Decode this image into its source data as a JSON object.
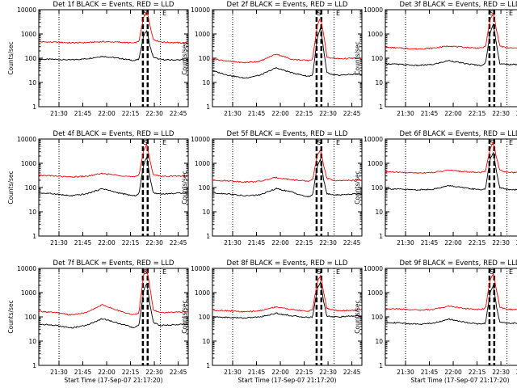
{
  "x_tick_labels": [
    "21:30",
    "21:45",
    "22:00",
    "22:15",
    "22:30",
    "22:45"
  ],
  "x_axis_label": "Start Time (17-Sep-07 21:17:20)",
  "y_axis_label": "Counts/sec",
  "y_tick_labels": [
    "1",
    "10",
    "100",
    "1000",
    "10000"
  ],
  "colors": {
    "events": "#000000",
    "lld": "#ff0000",
    "axes": "#000000",
    "background": "#ffffff"
  },
  "chart_data": [
    {
      "type": "line",
      "title": "Det 1f BLACK = Events, RED = LLD",
      "xlabel": "",
      "ylabel": "Counts/sec",
      "x_unit": "minutes after 21:17:20",
      "xlim": [
        0,
        94
      ],
      "ylim": [
        1,
        10000
      ],
      "yscale": "log",
      "x_tick_values": [
        12.7,
        27.7,
        42.7,
        57.7,
        72.7,
        87.7
      ],
      "x_tick_labels": [
        "21:30",
        "21:45",
        "22:00",
        "22:15",
        "22:30",
        "22:45"
      ],
      "dotted_vlines": [
        12.7,
        76.5
      ],
      "dashed_vlines": [
        65.5,
        68.5
      ],
      "markers": [
        "S",
        "E"
      ],
      "x": [
        0,
        10,
        20,
        30,
        40,
        50,
        60,
        63,
        66,
        68,
        70,
        72,
        76,
        80,
        90,
        94
      ],
      "series": [
        {
          "name": "BLACK = Events",
          "values": [
            90,
            90,
            85,
            95,
            120,
            100,
            80,
            90,
            900,
            1400,
            300,
            110,
            90,
            85,
            85,
            85
          ]
        },
        {
          "name": "RED = LLD",
          "values": [
            470,
            460,
            430,
            440,
            480,
            460,
            420,
            500,
            5000,
            9000,
            2200,
            600,
            480,
            450,
            430,
            430
          ]
        }
      ]
    },
    {
      "type": "line",
      "title": "Det 2f BLACK = Events, RED = LLD",
      "xlabel": "",
      "ylabel": "Counts/sec",
      "x_unit": "minutes after 21:17:20",
      "xlim": [
        0,
        94
      ],
      "ylim": [
        1,
        10000
      ],
      "yscale": "log",
      "x_tick_values": [
        12.7,
        27.7,
        42.7,
        57.7,
        72.7,
        87.7
      ],
      "x_tick_labels": [
        "21:30",
        "21:45",
        "22:00",
        "22:15",
        "22:30",
        "22:45"
      ],
      "dotted_vlines": [
        12.7,
        76.5
      ],
      "dashed_vlines": [
        65.5,
        68.5
      ],
      "markers": [
        "S",
        "E"
      ],
      "x": [
        0,
        10,
        20,
        30,
        40,
        50,
        60,
        63,
        66,
        68,
        70,
        72,
        76,
        80,
        90,
        94
      ],
      "series": [
        {
          "name": "BLACK = Events",
          "values": [
            30,
            20,
            15,
            20,
            40,
            25,
            18,
            20,
            700,
            1800,
            200,
            25,
            20,
            20,
            22,
            22
          ]
        },
        {
          "name": "RED = LLD",
          "values": [
            95,
            75,
            65,
            75,
            150,
            90,
            80,
            90,
            2500,
            4500,
            900,
            110,
            100,
            95,
            100,
            100
          ]
        }
      ]
    },
    {
      "type": "line",
      "title": "Det 3f BLACK = Events, RED = LLD",
      "xlabel": "",
      "ylabel": "Counts/sec",
      "x_unit": "minutes after 21:17:20",
      "xlim": [
        0,
        94
      ],
      "ylim": [
        1,
        10000
      ],
      "yscale": "log",
      "x_tick_values": [
        12.7,
        27.7,
        42.7,
        57.7,
        72.7,
        87.7
      ],
      "x_tick_labels": [
        "21:30",
        "21:45",
        "22:00",
        "22:15",
        "22:30",
        "22:45"
      ],
      "dotted_vlines": [
        12.7,
        76.5
      ],
      "dashed_vlines": [
        65.5,
        68.5
      ],
      "markers": [
        "S",
        "E"
      ],
      "x": [
        0,
        10,
        20,
        30,
        40,
        50,
        60,
        63,
        66,
        68,
        70,
        72,
        76,
        80,
        90,
        94
      ],
      "series": [
        {
          "name": "BLACK = Events",
          "values": [
            60,
            55,
            50,
            55,
            80,
            60,
            50,
            60,
            1200,
            2500,
            350,
            60,
            55,
            55,
            55,
            55
          ]
        },
        {
          "name": "RED = LLD",
          "values": [
            280,
            260,
            240,
            260,
            320,
            280,
            260,
            300,
            4000,
            7000,
            1400,
            320,
            270,
            260,
            260,
            260
          ]
        }
      ]
    },
    {
      "type": "line",
      "title": "Det 4f BLACK = Events, RED = LLD",
      "xlabel": "",
      "ylabel": "Counts/sec",
      "x_unit": "minutes after 21:17:20",
      "xlim": [
        0,
        94
      ],
      "ylim": [
        1,
        10000
      ],
      "yscale": "log",
      "x_tick_values": [
        12.7,
        27.7,
        42.7,
        57.7,
        72.7,
        87.7
      ],
      "x_tick_labels": [
        "21:30",
        "21:45",
        "22:00",
        "22:15",
        "22:30",
        "22:45"
      ],
      "dotted_vlines": [
        12.7,
        76.5
      ],
      "dashed_vlines": [
        65.5,
        68.5
      ],
      "markers": [
        "S",
        "E"
      ],
      "x": [
        0,
        10,
        20,
        30,
        40,
        50,
        60,
        63,
        66,
        68,
        70,
        72,
        76,
        80,
        90,
        94
      ],
      "series": [
        {
          "name": "BLACK = Events",
          "values": [
            60,
            55,
            45,
            55,
            90,
            60,
            45,
            55,
            900,
            1800,
            250,
            60,
            55,
            55,
            60,
            60
          ]
        },
        {
          "name": "RED = LLD",
          "values": [
            320,
            300,
            270,
            290,
            380,
            320,
            270,
            330,
            3500,
            6000,
            1200,
            350,
            300,
            290,
            300,
            300
          ]
        }
      ]
    },
    {
      "type": "line",
      "title": "Det 5f BLACK = Events, RED = LLD",
      "xlabel": "",
      "ylabel": "Counts/sec",
      "x_unit": "minutes after 21:17:20",
      "xlim": [
        0,
        94
      ],
      "ylim": [
        1,
        10000
      ],
      "yscale": "log",
      "x_tick_values": [
        12.7,
        27.7,
        42.7,
        57.7,
        72.7,
        87.7
      ],
      "x_tick_labels": [
        "21:30",
        "21:45",
        "22:00",
        "22:15",
        "22:30",
        "22:45"
      ],
      "dotted_vlines": [
        12.7,
        76.5
      ],
      "dashed_vlines": [
        65.5,
        68.5
      ],
      "markers": [
        "S",
        "E"
      ],
      "x": [
        0,
        10,
        20,
        30,
        40,
        50,
        60,
        63,
        66,
        68,
        70,
        72,
        76,
        80,
        90,
        94
      ],
      "series": [
        {
          "name": "BLACK = Events",
          "values": [
            60,
            55,
            45,
            50,
            90,
            65,
            40,
            50,
            800,
            1500,
            200,
            55,
            50,
            50,
            55,
            55
          ]
        },
        {
          "name": "RED = LLD",
          "values": [
            200,
            190,
            170,
            180,
            260,
            210,
            180,
            210,
            2200,
            3500,
            800,
            240,
            200,
            190,
            200,
            200
          ]
        }
      ]
    },
    {
      "type": "line",
      "title": "Det 6f BLACK = Events, RED = LLD",
      "xlabel": "",
      "ylabel": "Counts/sec",
      "x_unit": "minutes after 21:17:20",
      "xlim": [
        0,
        94
      ],
      "ylim": [
        1,
        10000
      ],
      "yscale": "log",
      "x_tick_values": [
        12.7,
        27.7,
        42.7,
        57.7,
        72.7,
        87.7
      ],
      "x_tick_labels": [
        "21:30",
        "21:45",
        "22:00",
        "22:15",
        "22:30",
        "22:45"
      ],
      "dotted_vlines": [
        12.7,
        76.5
      ],
      "dashed_vlines": [
        65.5,
        68.5
      ],
      "markers": [
        "S",
        "E"
      ],
      "x": [
        0,
        10,
        20,
        30,
        40,
        50,
        60,
        63,
        66,
        68,
        70,
        72,
        76,
        80,
        90,
        94
      ],
      "series": [
        {
          "name": "BLACK = Events",
          "values": [
            90,
            85,
            80,
            85,
            120,
            95,
            80,
            90,
            1500,
            3000,
            400,
            100,
            85,
            80,
            85,
            85
          ]
        },
        {
          "name": "RED = LLD",
          "values": [
            450,
            420,
            400,
            420,
            520,
            450,
            420,
            480,
            4000,
            7500,
            1600,
            520,
            440,
            420,
            430,
            430
          ]
        }
      ]
    },
    {
      "type": "line",
      "title": "Det 7f BLACK = Events, RED = LLD",
      "xlabel": "Start Time (17-Sep-07 21:17:20)",
      "ylabel": "Counts/sec",
      "x_unit": "minutes after 21:17:20",
      "xlim": [
        0,
        94
      ],
      "ylim": [
        1,
        10000
      ],
      "yscale": "log",
      "x_tick_values": [
        12.7,
        27.7,
        42.7,
        57.7,
        72.7,
        87.7
      ],
      "x_tick_labels": [
        "21:30",
        "21:45",
        "22:00",
        "22:15",
        "22:30",
        "22:45"
      ],
      "dotted_vlines": [
        12.7,
        76.5
      ],
      "dashed_vlines": [
        65.5,
        68.5
      ],
      "markers": [
        "S",
        "E"
      ],
      "x": [
        0,
        10,
        20,
        30,
        40,
        50,
        60,
        63,
        66,
        68,
        70,
        72,
        76,
        80,
        90,
        94
      ],
      "series": [
        {
          "name": "BLACK = Events",
          "values": [
            50,
            45,
            35,
            45,
            85,
            55,
            35,
            45,
            1200,
            2500,
            300,
            60,
            45,
            45,
            50,
            50
          ]
        },
        {
          "name": "RED = LLD",
          "values": [
            170,
            150,
            120,
            150,
            320,
            180,
            120,
            150,
            6000,
            9000,
            1500,
            200,
            150,
            150,
            160,
            160
          ]
        }
      ]
    },
    {
      "type": "line",
      "title": "Det 8f BLACK = Events, RED = LLD",
      "xlabel": "Start Time (17-Sep-07 21:17:20)",
      "ylabel": "Counts/sec",
      "x_unit": "minutes after 21:17:20",
      "xlim": [
        0,
        94
      ],
      "ylim": [
        1,
        10000
      ],
      "yscale": "log",
      "x_tick_values": [
        12.7,
        27.7,
        42.7,
        57.7,
        72.7,
        87.7
      ],
      "x_tick_labels": [
        "21:30",
        "21:45",
        "22:00",
        "22:15",
        "22:30",
        "22:45"
      ],
      "dotted_vlines": [
        12.7,
        76.5
      ],
      "dashed_vlines": [
        65.5,
        68.5
      ],
      "markers": [
        "S",
        "E"
      ],
      "x": [
        0,
        10,
        20,
        30,
        40,
        50,
        60,
        63,
        66,
        68,
        70,
        72,
        76,
        80,
        90,
        94
      ],
      "series": [
        {
          "name": "BLACK = Events",
          "values": [
            100,
            95,
            90,
            100,
            140,
            110,
            95,
            100,
            1500,
            2800,
            400,
            110,
            100,
            100,
            110,
            110
          ]
        },
        {
          "name": "RED = LLD",
          "values": [
            190,
            180,
            160,
            180,
            260,
            200,
            170,
            200,
            3000,
            5000,
            1000,
            220,
            190,
            180,
            190,
            190
          ]
        }
      ]
    },
    {
      "type": "line",
      "title": "Det 9f BLACK = Events, RED = LLD",
      "xlabel": "Start Time (17-Sep-07 21:17:20)",
      "ylabel": "Counts/sec",
      "x_unit": "minutes after 21:17:20",
      "xlim": [
        0,
        94
      ],
      "ylim": [
        1,
        10000
      ],
      "yscale": "log",
      "x_tick_values": [
        12.7,
        27.7,
        42.7,
        57.7,
        72.7,
        87.7
      ],
      "x_tick_labels": [
        "21:30",
        "21:45",
        "22:00",
        "22:15",
        "22:30",
        "22:45"
      ],
      "dotted_vlines": [
        12.7,
        76.5
      ],
      "dashed_vlines": [
        65.5,
        68.5
      ],
      "markers": [
        "S",
        "E"
      ],
      "x": [
        0,
        10,
        20,
        30,
        40,
        50,
        60,
        63,
        66,
        68,
        70,
        72,
        76,
        80,
        90,
        94
      ],
      "series": [
        {
          "name": "BLACK = Events",
          "values": [
            60,
            55,
            50,
            55,
            80,
            60,
            50,
            55,
            1000,
            2000,
            250,
            60,
            55,
            55,
            55,
            55
          ]
        },
        {
          "name": "RED = LLD",
          "values": [
            220,
            210,
            190,
            200,
            280,
            220,
            200,
            230,
            3500,
            6000,
            1200,
            250,
            210,
            200,
            210,
            210
          ]
        }
      ]
    }
  ]
}
